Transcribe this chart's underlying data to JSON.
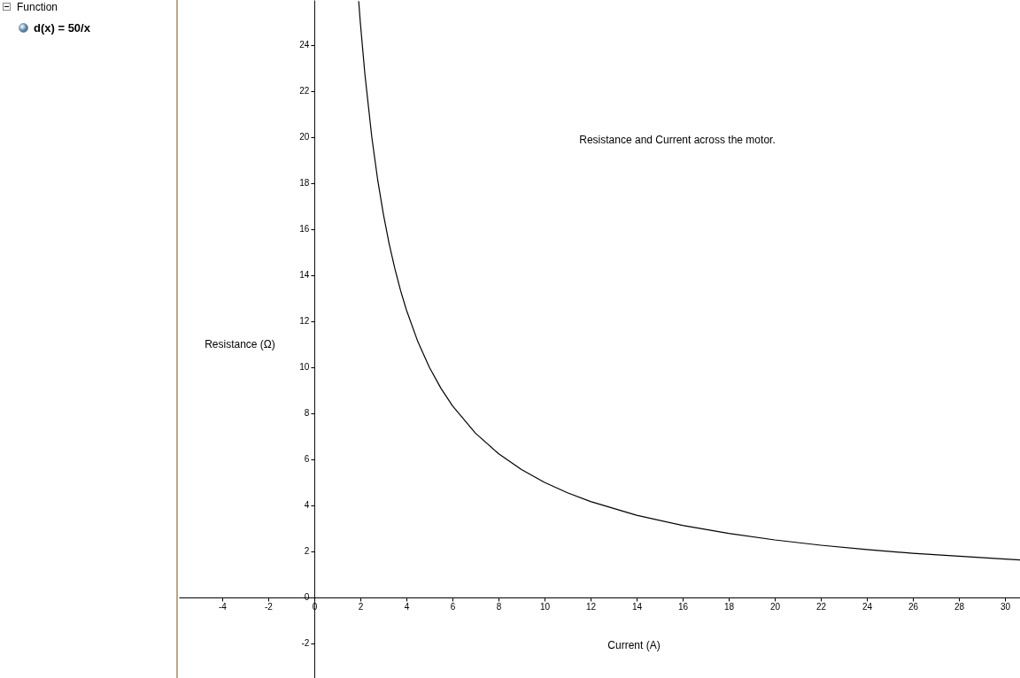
{
  "chart_data": {
    "type": "line",
    "title": "Resistance and Current across the motor.",
    "xlabel": "Current (A)",
    "ylabel": "Resistance (Ω)",
    "annotations": [
      "Function",
      "d(x) = 50/x"
    ],
    "x": [
      1.93,
      2,
      2.2,
      2.5,
      2.75,
      3,
      3.25,
      3.5,
      3.75,
      4,
      4.5,
      5,
      5.5,
      6,
      7,
      8,
      9,
      10,
      11,
      12,
      14,
      16,
      18,
      20,
      22,
      24,
      26,
      28,
      30,
      30.65
    ],
    "series": [
      {
        "color": "#000000",
        "values": [
          25.91,
          25,
          22.73,
          20,
          18.18,
          16.67,
          15.38,
          14.29,
          13.33,
          12.5,
          11.11,
          10,
          9.09,
          8.33,
          7.14,
          6.25,
          5.56,
          5,
          4.55,
          4.17,
          3.57,
          3.13,
          2.78,
          2.5,
          2.27,
          2.08,
          1.92,
          1.79,
          1.67,
          1.63
        ]
      }
    ],
    "xlim": [
      -5.88,
      30.65
    ],
    "ylim": [
      -3.5,
      25.96
    ],
    "xticks": [
      -4,
      -2,
      0,
      2,
      4,
      6,
      8,
      10,
      12,
      14,
      16,
      18,
      20,
      22,
      24,
      26,
      28,
      30
    ],
    "yticks": [
      -2,
      0,
      2,
      4,
      6,
      8,
      10,
      12,
      14,
      16,
      18,
      20,
      22,
      24
    ],
    "grid": false,
    "marker": "none",
    "line_style": "solid"
  }
}
